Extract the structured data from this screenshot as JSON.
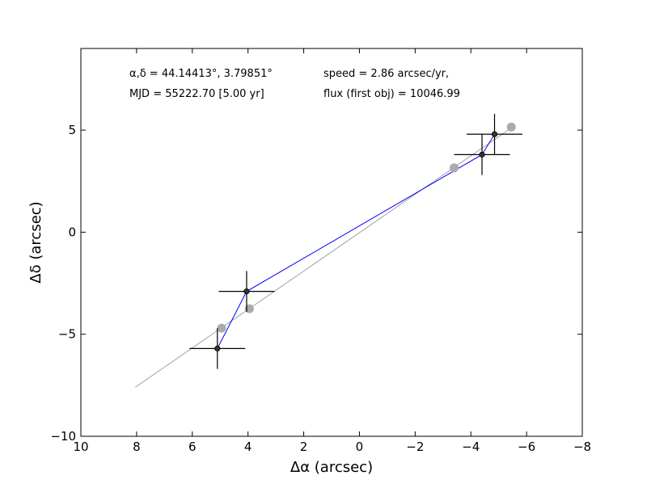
{
  "chart_data": {
    "type": "scatter",
    "title": "",
    "xlabel": "Δα (arcsec)",
    "ylabel": "Δδ (arcsec)",
    "xlim": [
      10,
      -8
    ],
    "ylim": [
      -10,
      9
    ],
    "x_ticks": [
      10,
      8,
      6,
      4,
      2,
      0,
      -2,
      -4,
      -6,
      -8
    ],
    "x_tick_labels": [
      "10",
      "8",
      "6",
      "4",
      "2",
      "0",
      "−2",
      "−4",
      "−6",
      "−8"
    ],
    "y_ticks": [
      -10,
      -5,
      0,
      5
    ],
    "y_tick_labels": [
      "−10",
      "−5",
      "0",
      "5"
    ],
    "grid": false,
    "annotations": {
      "coords": "α,δ = 44.14413°, 3.79851°",
      "mjd": "MJD = 55222.70 [5.00 yr]",
      "speed": "speed = 2.86 arcsec/yr,",
      "flux": "flux (first obj) = 10046.99"
    },
    "fit_line": {
      "color": "#a0a0a0",
      "x": [
        8.05,
        -5.55
      ],
      "y": [
        -7.6,
        5.2
      ]
    },
    "model_points": {
      "color": "#aaaaaa",
      "x": [
        4.95,
        3.95,
        -3.4,
        -5.45
      ],
      "y": [
        -4.7,
        -3.75,
        3.15,
        5.15
      ]
    },
    "observed": {
      "color": "#0000ff",
      "x": [
        5.1,
        4.05,
        -4.4,
        -4.85
      ],
      "y": [
        -5.7,
        -2.9,
        3.8,
        4.8
      ],
      "xerr": [
        1.0,
        1.0,
        1.0,
        1.0
      ],
      "yerr": [
        1.0,
        1.0,
        1.0,
        1.0
      ]
    }
  }
}
